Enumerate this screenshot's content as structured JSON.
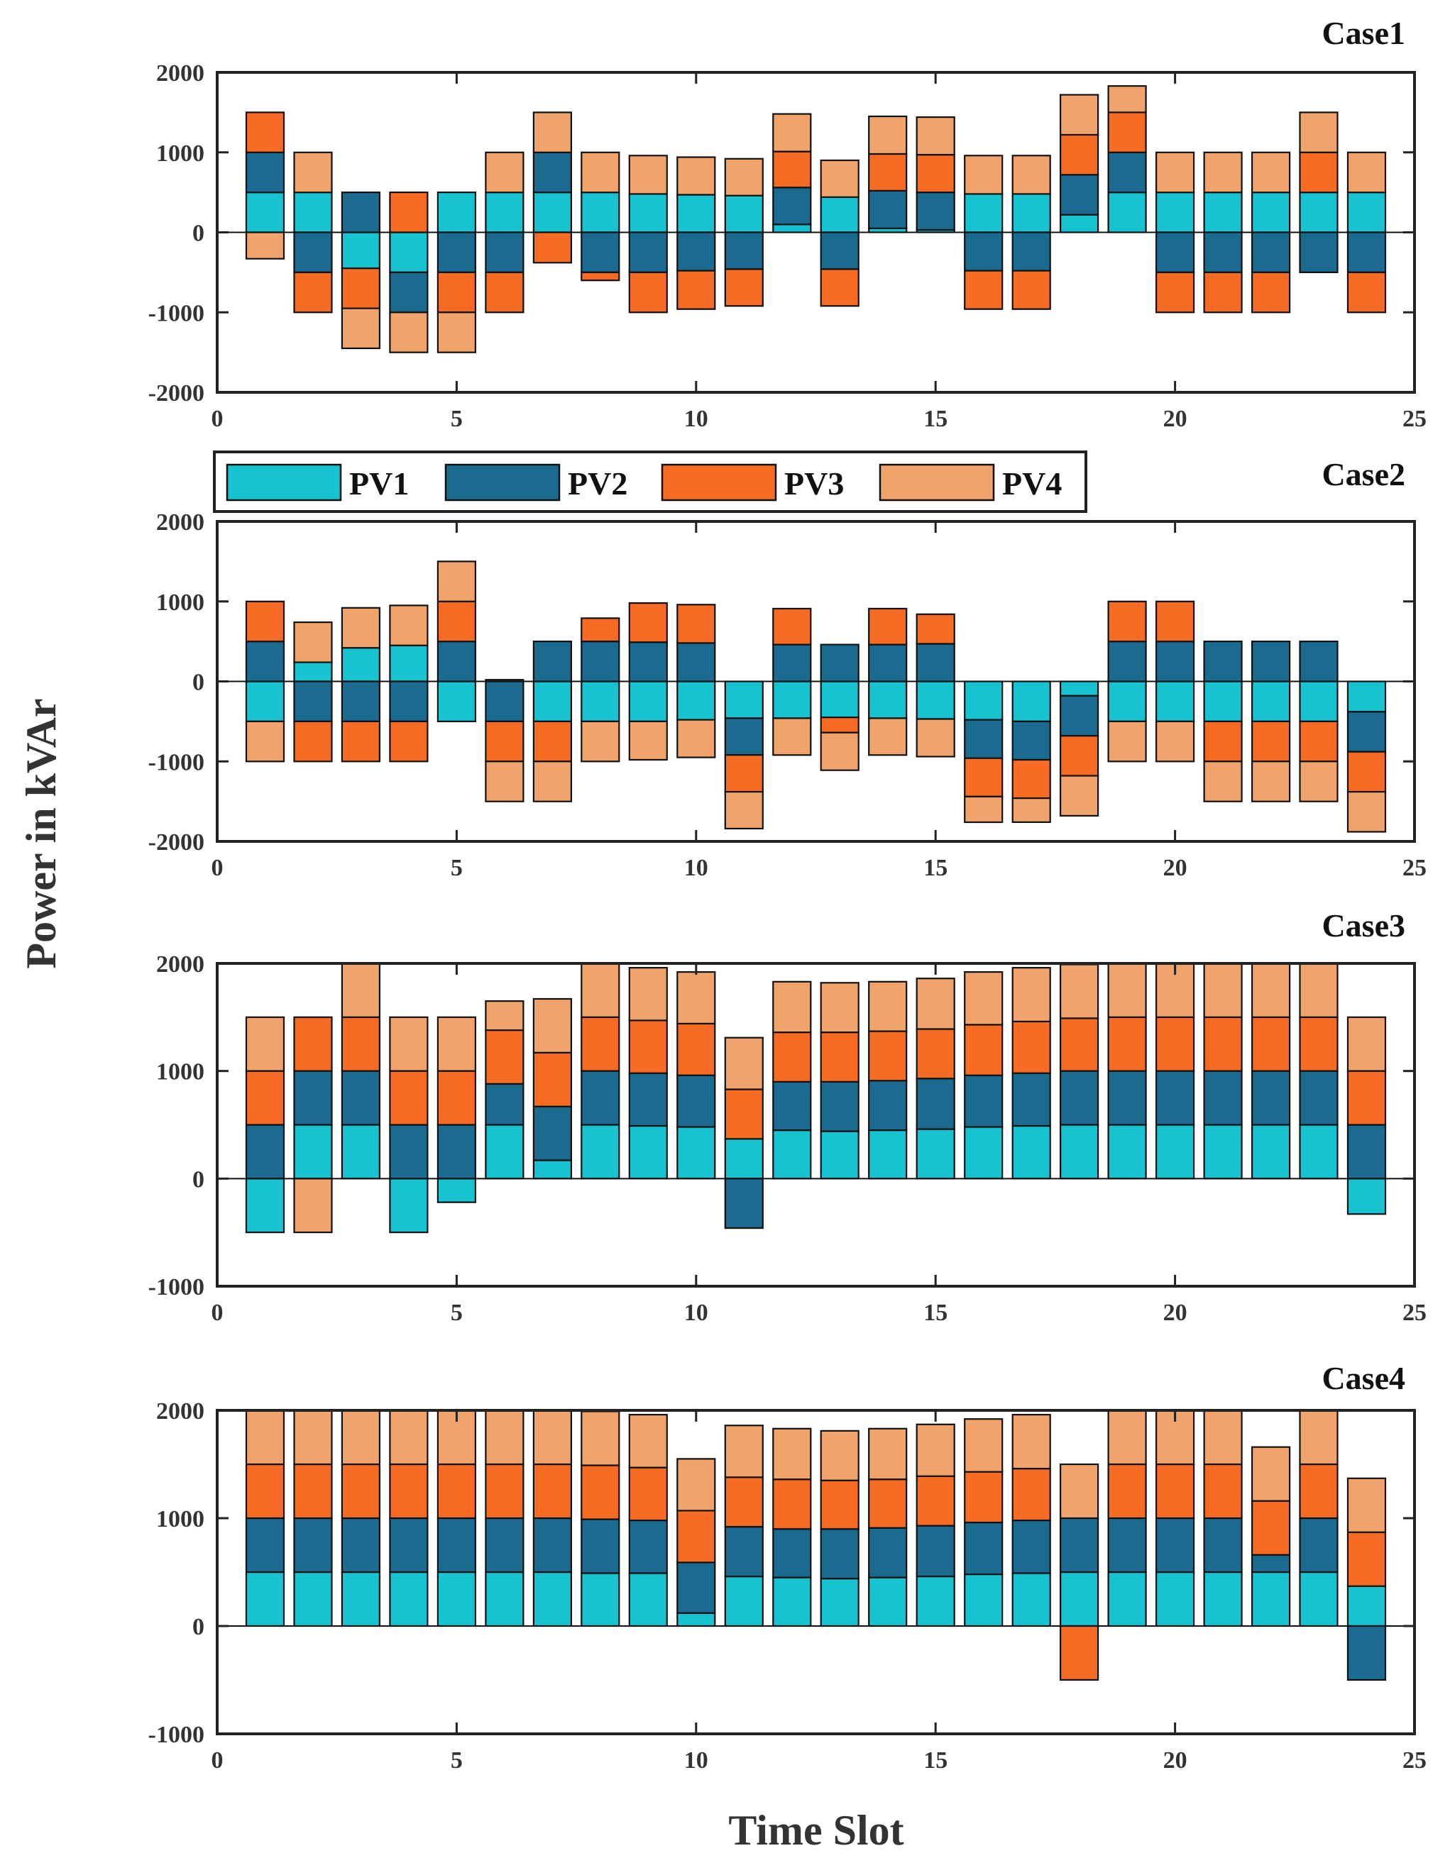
{
  "figure": {
    "ylabel": "Power in kVAr",
    "xlabel": "Time Slot"
  },
  "chart_data": [
    {
      "type": "bar",
      "title": "Case1",
      "stacked": "diverging",
      "x": [
        1,
        2,
        3,
        4,
        5,
        6,
        7,
        8,
        9,
        10,
        11,
        12,
        13,
        14,
        15,
        16,
        17,
        18,
        19,
        20,
        21,
        22,
        23,
        24
      ],
      "xlim": [
        0,
        25
      ],
      "ylim": [
        -2000,
        2000
      ],
      "xticks": [
        0,
        5,
        10,
        15,
        20,
        25
      ],
      "yticks": [
        -2000,
        -1000,
        0,
        1000,
        2000
      ],
      "series": [
        {
          "name": "PV1",
          "color": "#17c2d1",
          "values": [
            500,
            500,
            -450,
            -500,
            500,
            500,
            500,
            500,
            480,
            470,
            460,
            100,
            440,
            50,
            30,
            480,
            480,
            220,
            500,
            500,
            500,
            500,
            500,
            500
          ]
        },
        {
          "name": "PV2",
          "color": "#1b6b91",
          "values": [
            500,
            -500,
            500,
            -500,
            -500,
            -500,
            500,
            -500,
            -500,
            -480,
            -460,
            460,
            -460,
            470,
            470,
            -480,
            -480,
            500,
            500,
            -500,
            -500,
            -500,
            -500,
            -500
          ]
        },
        {
          "name": "PV3",
          "color": "#f86b24",
          "values": [
            500,
            -500,
            -500,
            500,
            -500,
            -500,
            -380,
            -100,
            -500,
            -480,
            -460,
            450,
            -460,
            460,
            470,
            -480,
            -480,
            500,
            500,
            -500,
            -500,
            -500,
            500,
            -500
          ]
        },
        {
          "name": "PV4",
          "color": "#f0a46b",
          "values": [
            -330,
            500,
            -500,
            -500,
            -500,
            500,
            500,
            500,
            480,
            470,
            460,
            470,
            460,
            470,
            470,
            480,
            480,
            500,
            330,
            500,
            500,
            500,
            500,
            500
          ]
        }
      ]
    },
    {
      "type": "bar",
      "title": "Case2",
      "stacked": "diverging",
      "x": [
        1,
        2,
        3,
        4,
        5,
        6,
        7,
        8,
        9,
        10,
        11,
        12,
        13,
        14,
        15,
        16,
        17,
        18,
        19,
        20,
        21,
        22,
        23,
        24
      ],
      "xlim": [
        0,
        25
      ],
      "ylim": [
        -2000,
        2000
      ],
      "xticks": [
        0,
        5,
        10,
        15,
        20,
        25
      ],
      "yticks": [
        -2000,
        -1000,
        0,
        1000,
        2000
      ],
      "series": [
        {
          "name": "PV1",
          "color": "#17c2d1",
          "values": [
            -500,
            240,
            420,
            450,
            -500,
            20,
            -500,
            -500,
            -500,
            -480,
            -460,
            -460,
            -450,
            -460,
            -470,
            -480,
            -500,
            -180,
            -500,
            -500,
            -500,
            -500,
            -500,
            -380
          ]
        },
        {
          "name": "PV2",
          "color": "#1b6b91",
          "values": [
            500,
            -500,
            -500,
            -500,
            500,
            -500,
            500,
            500,
            490,
            480,
            -460,
            460,
            460,
            460,
            470,
            -480,
            -480,
            -500,
            500,
            500,
            500,
            500,
            500,
            -500
          ]
        },
        {
          "name": "PV3",
          "color": "#f86b24",
          "values": [
            500,
            -500,
            -500,
            -500,
            500,
            -500,
            -500,
            290,
            490,
            480,
            -460,
            450,
            -190,
            450,
            370,
            -480,
            -480,
            -500,
            500,
            500,
            -500,
            -500,
            -500,
            -500
          ]
        },
        {
          "name": "PV4",
          "color": "#f0a46b",
          "values": [
            -500,
            500,
            500,
            500,
            500,
            -500,
            -500,
            -500,
            -480,
            -470,
            -460,
            -460,
            -470,
            -460,
            -470,
            -320,
            -300,
            -500,
            -500,
            -500,
            -500,
            -500,
            -500,
            -500
          ]
        }
      ]
    },
    {
      "type": "bar",
      "title": "Case3",
      "stacked": "diverging",
      "x": [
        1,
        2,
        3,
        4,
        5,
        6,
        7,
        8,
        9,
        10,
        11,
        12,
        13,
        14,
        15,
        16,
        17,
        18,
        19,
        20,
        21,
        22,
        23,
        24
      ],
      "xlim": [
        0,
        25
      ],
      "ylim": [
        -1000,
        2000
      ],
      "xticks": [
        0,
        5,
        10,
        15,
        20,
        25
      ],
      "yticks": [
        -1000,
        0,
        1000,
        2000
      ],
      "series": [
        {
          "name": "PV1",
          "color": "#17c2d1",
          "values": [
            -500,
            500,
            500,
            -500,
            -220,
            500,
            170,
            500,
            490,
            480,
            370,
            450,
            440,
            450,
            460,
            480,
            490,
            500,
            500,
            500,
            500,
            500,
            500,
            -330
          ]
        },
        {
          "name": "PV2",
          "color": "#1b6b91",
          "values": [
            500,
            500,
            500,
            500,
            500,
            380,
            500,
            500,
            490,
            480,
            -460,
            450,
            460,
            460,
            470,
            480,
            490,
            500,
            500,
            500,
            500,
            500,
            500,
            500
          ]
        },
        {
          "name": "PV3",
          "color": "#f86b24",
          "values": [
            500,
            500,
            500,
            500,
            500,
            500,
            500,
            500,
            490,
            480,
            460,
            460,
            460,
            460,
            460,
            470,
            480,
            490,
            500,
            500,
            500,
            500,
            500,
            500
          ]
        },
        {
          "name": "PV4",
          "color": "#f0a46b",
          "values": [
            500,
            -500,
            500,
            500,
            500,
            270,
            500,
            500,
            490,
            480,
            480,
            470,
            460,
            460,
            470,
            490,
            500,
            500,
            500,
            500,
            500,
            500,
            500,
            500
          ]
        }
      ]
    },
    {
      "type": "bar",
      "title": "Case4",
      "stacked": "diverging",
      "x": [
        1,
        2,
        3,
        4,
        5,
        6,
        7,
        8,
        9,
        10,
        11,
        12,
        13,
        14,
        15,
        16,
        17,
        18,
        19,
        20,
        21,
        22,
        23,
        24
      ],
      "xlim": [
        0,
        25
      ],
      "ylim": [
        -1000,
        2000
      ],
      "xticks": [
        0,
        5,
        10,
        15,
        20,
        25
      ],
      "yticks": [
        -1000,
        0,
        1000,
        2000
      ],
      "series": [
        {
          "name": "PV1",
          "color": "#17c2d1",
          "values": [
            500,
            500,
            500,
            500,
            500,
            500,
            500,
            490,
            490,
            120,
            460,
            450,
            440,
            450,
            460,
            480,
            490,
            500,
            500,
            500,
            500,
            500,
            500,
            370
          ]
        },
        {
          "name": "PV2",
          "color": "#1b6b91",
          "values": [
            500,
            500,
            500,
            500,
            500,
            500,
            500,
            500,
            490,
            470,
            460,
            450,
            460,
            460,
            470,
            480,
            490,
            500,
            500,
            500,
            500,
            160,
            500,
            -500
          ]
        },
        {
          "name": "PV3",
          "color": "#f86b24",
          "values": [
            500,
            500,
            500,
            500,
            500,
            500,
            500,
            500,
            490,
            480,
            460,
            460,
            450,
            450,
            460,
            470,
            480,
            -500,
            500,
            500,
            500,
            500,
            500,
            500
          ]
        },
        {
          "name": "PV4",
          "color": "#f0a46b",
          "values": [
            500,
            500,
            500,
            500,
            500,
            500,
            500,
            500,
            490,
            480,
            480,
            470,
            460,
            470,
            480,
            490,
            500,
            500,
            500,
            500,
            500,
            500,
            500,
            500
          ]
        }
      ]
    }
  ],
  "legend": {
    "placement": "between-case1-and-case2",
    "entries": [
      {
        "label": "PV1",
        "color": "#17c2d1"
      },
      {
        "label": "PV2",
        "color": "#1b6b91"
      },
      {
        "label": "PV3",
        "color": "#f86b24"
      },
      {
        "label": "PV4",
        "color": "#f0a46b"
      }
    ]
  }
}
